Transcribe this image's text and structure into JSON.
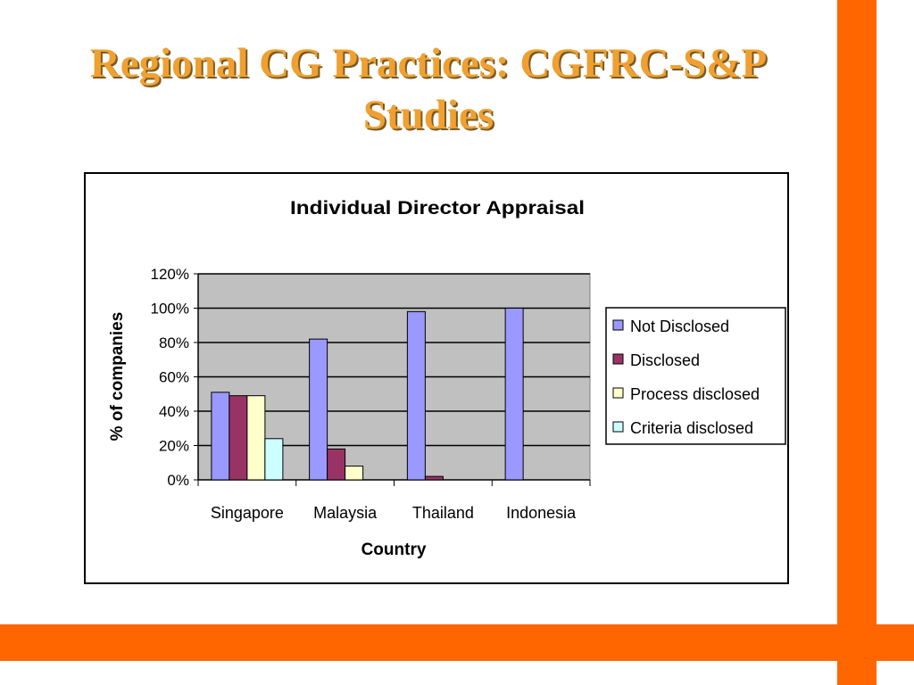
{
  "slide": {
    "title_line1": "Regional CG Practices: CGFRC-S&P",
    "title_line2": "Studies",
    "accent_color": "#ff6600",
    "title_color": "#f0a030"
  },
  "chart_data": {
    "type": "bar",
    "title": "Individual Director Appraisal",
    "xlabel": "Country",
    "ylabel": "% of companies",
    "categories": [
      "Singapore",
      "Malaysia",
      "Thailand",
      "Indonesia"
    ],
    "yticks": [
      "0%",
      "20%",
      "40%",
      "60%",
      "80%",
      "100%",
      "120%"
    ],
    "ylim": [
      0,
      1.2
    ],
    "grid": true,
    "legend_position": "right",
    "plot_background": "#c0c0c0",
    "series": [
      {
        "name": "Not Disclosed",
        "color": "#9999ff",
        "values": [
          0.51,
          0.82,
          0.98,
          1.0
        ]
      },
      {
        "name": "Disclosed",
        "color": "#993366",
        "values": [
          0.49,
          0.18,
          0.02,
          0
        ]
      },
      {
        "name": "Process disclosed",
        "color": "#ffffcc",
        "values": [
          0.49,
          0.08,
          0,
          0
        ]
      },
      {
        "name": "Criteria disclosed",
        "color": "#ccffff",
        "values": [
          0.24,
          0,
          0,
          0
        ]
      }
    ]
  }
}
